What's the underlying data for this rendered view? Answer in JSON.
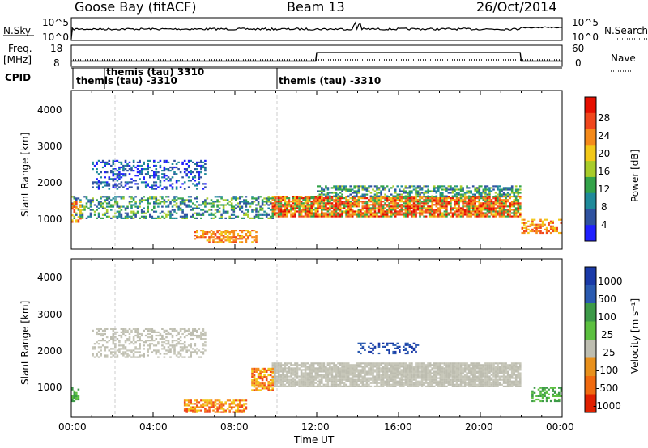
{
  "header": {
    "station": "Goose Bay (fitACF)",
    "beam": "Beam 13",
    "date": "26/Oct/2014"
  },
  "sky_panel": {
    "left_label": "N.Sky",
    "left_ticks": [
      "10^5",
      "10^0"
    ],
    "right_ticks": [
      "10^5",
      "10^0"
    ],
    "right_label": "N.Search"
  },
  "freq_panel": {
    "left_label_line1": "Freq.",
    "left_label_line2": "[MHz]",
    "left_ticks": [
      "18",
      "8"
    ],
    "right_ticks": [
      "60",
      "0"
    ],
    "right_label": "Nave"
  },
  "cpid": {
    "label": "CPID",
    "annotations": [
      {
        "text": "themis",
        "t": 0.05
      },
      {
        "text": "(tau) -3310",
        "t": 1.05
      },
      {
        "text": "themis (tau) 3310",
        "t": 1.95
      },
      {
        "text": "themis (tau) -3310",
        "t": 10.1
      }
    ]
  },
  "time_axis": {
    "label": "Time UT",
    "ticks": [
      "00:00",
      "04:00",
      "08:00",
      "12:00",
      "16:00",
      "20:00",
      "00:00"
    ]
  },
  "power_panel": {
    "ylabel": "Slant Range [km]",
    "yticks": [
      "4000",
      "3000",
      "2000",
      "1000"
    ],
    "colorbar_label": "Power [dB]",
    "colorbar_ticks": [
      "28",
      "24",
      "20",
      "16",
      "12",
      "8",
      "4"
    ],
    "colors": [
      "#2020ff",
      "#2f52a0",
      "#1f8a9a",
      "#33a34a",
      "#a8cc2a",
      "#f2c818",
      "#f58a1a",
      "#f0461c",
      "#e60f00"
    ]
  },
  "velocity_panel": {
    "ylabel": "Slant Range [km]",
    "yticks": [
      "4000",
      "3000",
      "2000",
      "1000"
    ],
    "colorbar_label": "Velocity [m s⁻¹]",
    "colorbar_ticks": [
      "1000",
      "500",
      "100",
      "25",
      "-25",
      "-100",
      "-500",
      "-1000"
    ],
    "colors": [
      "#1a3aa8",
      "#2a5ab0",
      "#3d9a48",
      "#5cc040",
      "#bdbdb0",
      "#e8901c",
      "#f06a10",
      "#e02000"
    ]
  },
  "chart_data": {
    "type": "heatmap",
    "x_unit": "hours UT",
    "xlim": [
      0,
      24
    ],
    "y_unit": "km",
    "ylim": [
      180,
      4500
    ],
    "power_db_range": [
      0,
      30
    ],
    "velocity_range": [
      -1000,
      1000
    ],
    "frequency_step": {
      "x": [
        0,
        11.95,
        12.0,
        21.95,
        22.0,
        24
      ],
      "mhz": [
        10.5,
        10.5,
        14.5,
        14.5,
        10.5,
        10.5
      ]
    },
    "power_blobs": [
      {
        "t0": 0.0,
        "t1": 9.8,
        "r0": 1000,
        "r1": 1600,
        "level": "green-blue",
        "density": 0.45
      },
      {
        "t0": 0.0,
        "t1": 0.5,
        "r0": 900,
        "r1": 1500,
        "level": "orange",
        "density": 0.55
      },
      {
        "t0": 9.8,
        "t1": 22.0,
        "r0": 1050,
        "r1": 1600,
        "level": "red-orange",
        "density": 0.85
      },
      {
        "t0": 12.0,
        "t1": 22.0,
        "r0": 1600,
        "r1": 1900,
        "level": "green-blue",
        "density": 0.55
      },
      {
        "t0": 1.0,
        "t1": 6.5,
        "r0": 1800,
        "r1": 2600,
        "level": "blue",
        "density": 0.35
      },
      {
        "t0": 6.0,
        "t1": 9.0,
        "r0": 350,
        "r1": 700,
        "level": "orange",
        "density": 0.55
      },
      {
        "t0": 22.0,
        "t1": 24.0,
        "r0": 600,
        "r1": 1000,
        "level": "orange",
        "density": 0.45
      }
    ],
    "velocity_blobs": [
      {
        "t0": 9.8,
        "t1": 22.0,
        "r0": 1000,
        "r1": 1650,
        "level": "grey",
        "density": 0.9
      },
      {
        "t0": 1.0,
        "t1": 6.5,
        "r0": 1800,
        "r1": 2600,
        "level": "grey",
        "density": 0.4
      },
      {
        "t0": 8.8,
        "t1": 9.8,
        "r0": 900,
        "r1": 1500,
        "level": "orange",
        "density": 0.7
      },
      {
        "t0": 5.5,
        "t1": 8.5,
        "r0": 300,
        "r1": 650,
        "level": "orange",
        "density": 0.6
      },
      {
        "t0": 0.0,
        "t1": 0.4,
        "r0": 600,
        "r1": 1000,
        "level": "green",
        "density": 0.6
      },
      {
        "t0": 22.5,
        "t1": 24.0,
        "r0": 600,
        "r1": 1000,
        "level": "green",
        "density": 0.5
      },
      {
        "t0": 14.0,
        "t1": 17.0,
        "r0": 1900,
        "r1": 2200,
        "level": "blue",
        "density": 0.4
      }
    ]
  }
}
